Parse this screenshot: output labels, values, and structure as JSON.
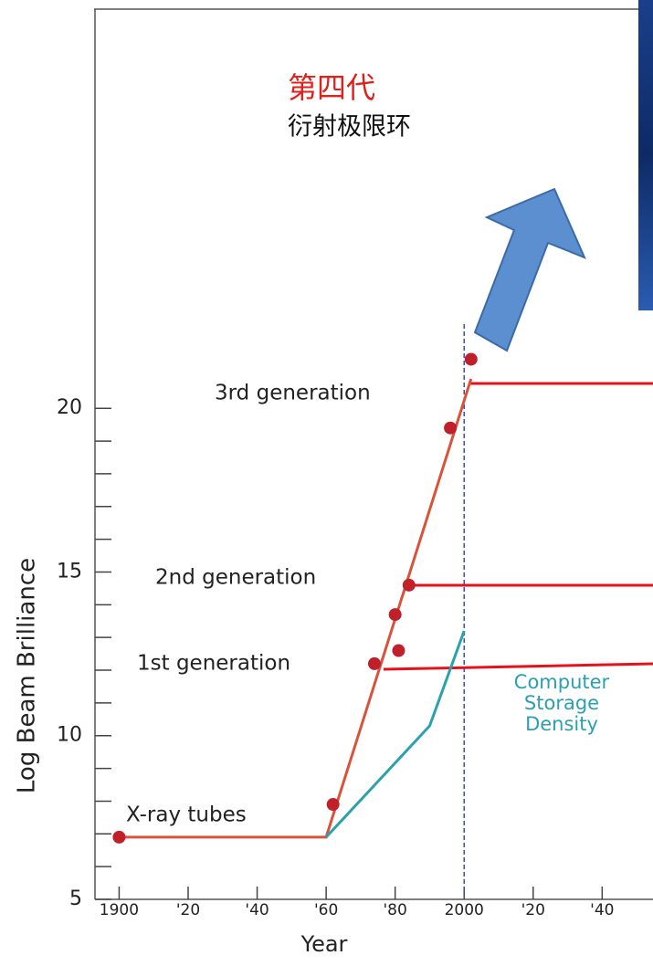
{
  "chart_data": {
    "type": "line",
    "heading": [
      "第四代",
      "衍射极限环"
    ],
    "xlabel": "Year",
    "ylabel": "Log Beam Brilliance",
    "xlim": [
      1893,
      2055
    ],
    "ylim": [
      5,
      32
    ],
    "xticks": [
      1900,
      {
        "value": 1920,
        "label": "'20"
      },
      {
        "value": 1940,
        "label": "'40"
      },
      {
        "value": 1960,
        "label": "'60"
      },
      {
        "value": 1980,
        "label": "'80"
      },
      2000,
      {
        "value": 2020,
        "label": "'20"
      },
      {
        "value": 2040,
        "label": "'40"
      }
    ],
    "yticks": [
      5,
      10,
      15,
      20
    ],
    "yminorticks": [
      6,
      7,
      8,
      9,
      11,
      12,
      13,
      14,
      16,
      17,
      18,
      19
    ],
    "series": [
      {
        "color": "#d9533a",
        "x": [
          1900,
          1960,
          2002
        ],
        "values": [
          6.9,
          6.9,
          20.9
        ]
      },
      {
        "color": "#2aa0b0",
        "x": [
          1960,
          1990,
          2000
        ],
        "values": [
          6.9,
          10.3,
          13.2
        ]
      },
      {
        "color": "#c0202a",
        "marker": "circle",
        "x": [
          1900,
          1962,
          1974,
          1980,
          1981,
          1984,
          1996,
          2002
        ],
        "values": [
          6.9,
          7.9,
          12.2,
          13.7,
          12.6,
          14.6,
          19.4,
          21.5
        ]
      }
    ],
    "vline": 2000,
    "labels": [
      "3rd generation",
      "2nd generation",
      "1st generation",
      "X-ray tubes"
    ],
    "storage_label": [
      "Computer",
      "Storage",
      "Density"
    ]
  }
}
